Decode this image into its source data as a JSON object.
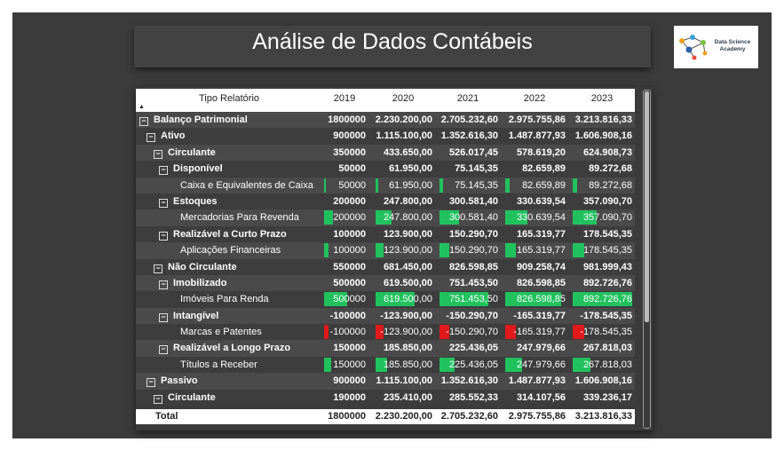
{
  "header": {
    "title": "Análise de Dados Contábeis"
  },
  "logo": {
    "line1": "Data Science",
    "line2": "Academy"
  },
  "table": {
    "columns": [
      "Tipo Relatório",
      "2019",
      "2020",
      "2021",
      "2022",
      "2023"
    ],
    "rows": [
      {
        "label": "Balanço Patrimonial",
        "level": 0,
        "toggle": "⊟",
        "values": [
          "1800000",
          "2.230.200,00",
          "2.705.232,60",
          "2.975.755,86",
          "3.213.816,33"
        ]
      },
      {
        "label": "Ativo",
        "level": 1,
        "toggle": "⊟",
        "values": [
          "900000",
          "1.115.100,00",
          "1.352.616,30",
          "1.487.877,93",
          "1.606.908,16"
        ]
      },
      {
        "label": "Circulante",
        "level": 2,
        "toggle": "⊟",
        "values": [
          "350000",
          "433.650,00",
          "526.017,45",
          "578.619,20",
          "624.908,73"
        ]
      },
      {
        "label": "Disponível",
        "level": 3,
        "toggle": "⊟",
        "values": [
          "50000",
          "61.950,00",
          "75.145,35",
          "82.659,89",
          "89.272,68"
        ]
      },
      {
        "label": "Caixa e Equivalentes de Caixa",
        "level": 4,
        "toggle": "",
        "values": [
          "50000",
          "61.950,00",
          "75.145,35",
          "82.659,89",
          "89.272,68"
        ],
        "bars": [
          0.04,
          0.05,
          0.06,
          0.07,
          0.07
        ]
      },
      {
        "label": "Estoques",
        "level": 3,
        "toggle": "⊟",
        "values": [
          "200000",
          "247.800,00",
          "300.581,40",
          "330.639,54",
          "357.090,70"
        ]
      },
      {
        "label": "Mercadorias Para Revenda",
        "level": 4,
        "toggle": "",
        "values": [
          "200000",
          "247.800,00",
          "300.581,40",
          "330.639,54",
          "357.090,70"
        ],
        "bars": [
          0.22,
          0.28,
          0.34,
          0.37,
          0.4
        ]
      },
      {
        "label": "Realizável a Curto Prazo",
        "level": 3,
        "toggle": "⊟",
        "values": [
          "100000",
          "123.900,00",
          "150.290,70",
          "165.319,77",
          "178.545,35"
        ]
      },
      {
        "label": "Aplicações Financeiras",
        "level": 4,
        "toggle": "",
        "values": [
          "100000",
          "123.900,00",
          "150.290,70",
          "165.319,77",
          "178.545,35"
        ],
        "bars": [
          0.11,
          0.14,
          0.17,
          0.18,
          0.2
        ]
      },
      {
        "label": "Não Circulante",
        "level": 2,
        "toggle": "⊟",
        "values": [
          "550000",
          "681.450,00",
          "826.598,85",
          "909.258,74",
          "981.999,43"
        ]
      },
      {
        "label": "Imobilizado",
        "level": 3,
        "toggle": "⊟",
        "values": [
          "500000",
          "619.500,00",
          "751.453,50",
          "826.598,85",
          "892.726,76"
        ]
      },
      {
        "label": "Imóveis Para Renda",
        "level": 4,
        "toggle": "",
        "values": [
          "500000",
          "619.500,00",
          "751.453,50",
          "826.598,85",
          "892.726,76"
        ],
        "bars": [
          0.56,
          0.69,
          0.84,
          0.93,
          1.0
        ]
      },
      {
        "label": "Intangível",
        "level": 3,
        "toggle": "⊟",
        "values": [
          "-100000",
          "-123.900,00",
          "-150.290,70",
          "-165.319,77",
          "-178.545,35"
        ]
      },
      {
        "label": "Marcas e Patentes",
        "level": 4,
        "toggle": "",
        "values": [
          "-100000",
          "-123.900,00",
          "-150.290,70",
          "-165.319,77",
          "-178.545,35"
        ],
        "bars": [
          -0.11,
          -0.14,
          -0.17,
          -0.18,
          -0.2
        ]
      },
      {
        "label": "Realizável a Longo Prazo",
        "level": 3,
        "toggle": "⊟",
        "values": [
          "150000",
          "185.850,00",
          "225.436,05",
          "247.979,66",
          "267.818,03"
        ]
      },
      {
        "label": "Títulos a Receber",
        "level": 4,
        "toggle": "",
        "values": [
          "150000",
          "185.850,00",
          "225.436,05",
          "247.979,66",
          "267.818,03"
        ],
        "bars": [
          0.17,
          0.21,
          0.25,
          0.28,
          0.3
        ]
      },
      {
        "label": "Passivo",
        "level": 1,
        "toggle": "⊟",
        "values": [
          "900000",
          "1.115.100,00",
          "1.352.616,30",
          "1.487.877,93",
          "1.606.908,16"
        ]
      },
      {
        "label": "Circulante",
        "level": 2,
        "toggle": "⊟",
        "values": [
          "190000",
          "235.410,00",
          "285.552,33",
          "314.107,56",
          "339.236,17"
        ]
      }
    ],
    "total": {
      "label": "Total",
      "values": [
        "1800000",
        "2.230.200,00",
        "2.705.232,60",
        "2.975.755,86",
        "3.213.816,33"
      ]
    }
  },
  "colors": {
    "positive_bar": "#21c25e",
    "negative_bar": "#e0191b",
    "background": "#3b3b3b"
  }
}
